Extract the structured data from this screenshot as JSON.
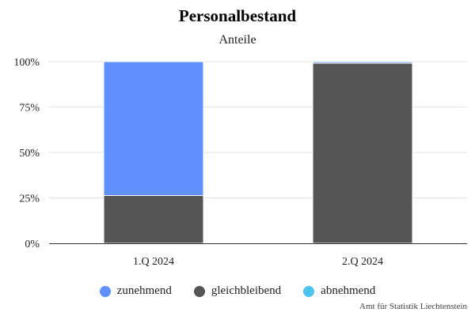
{
  "chart_data": {
    "type": "bar",
    "stacked": true,
    "title": "Personalbestand",
    "subtitle": "Anteile",
    "categories": [
      "1.Q 2024",
      "2.Q 2024"
    ],
    "series": [
      {
        "name": "zunehmend",
        "color": "#6090ff",
        "values": [
          73.7,
          0.8
        ]
      },
      {
        "name": "gleichbleibend",
        "color": "#555555",
        "values": [
          26.3,
          99.2
        ]
      },
      {
        "name": "abnehmend",
        "color": "#4dc3f0",
        "values": [
          0,
          0
        ]
      }
    ],
    "ylim": [
      0,
      100
    ],
    "yticks": [
      {
        "value": 0,
        "label": "0%"
      },
      {
        "value": 25,
        "label": "25%"
      },
      {
        "value": 50,
        "label": "50%"
      },
      {
        "value": 75,
        "label": "75%"
      },
      {
        "value": 100,
        "label": "100%"
      }
    ],
    "grid": true,
    "legend_position": "bottom",
    "credit": "Amt für Statistik Liechtenstein"
  }
}
